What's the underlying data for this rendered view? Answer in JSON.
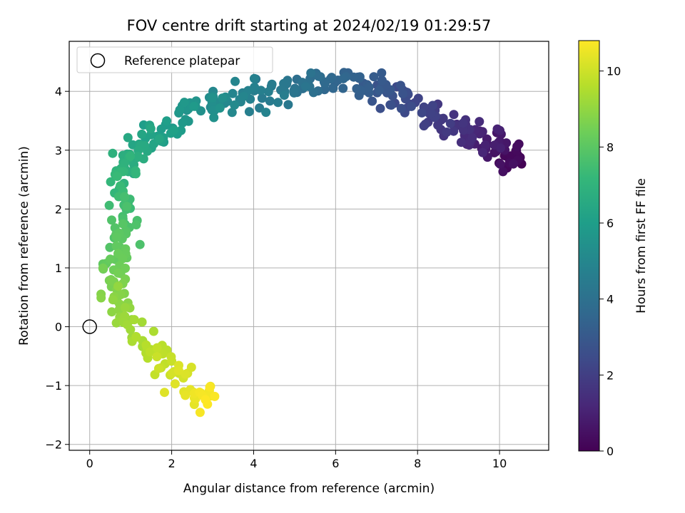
{
  "chart_data": {
    "type": "scatter",
    "title": "FOV centre drift starting at 2024/02/19 01:29:57",
    "xlabel": "Angular distance from reference (arcmin)",
    "ylabel": "Rotation from reference (arcmin)",
    "xlim": [
      -0.5,
      11.2
    ],
    "ylim": [
      -2.1,
      4.85
    ],
    "x_ticks": [
      0,
      2,
      4,
      6,
      8,
      10
    ],
    "y_ticks": [
      -2,
      -1,
      0,
      1,
      2,
      3,
      4
    ],
    "grid": true,
    "colormap": "viridis",
    "colorbar": {
      "label": "Hours from first FF file",
      "range": [
        0,
        10.8
      ],
      "ticks": [
        0,
        2,
        4,
        6,
        8,
        10
      ]
    },
    "legend": {
      "position": "top-left",
      "entries": [
        "Reference platepar"
      ]
    },
    "reference_point": {
      "x": 0,
      "y": 0,
      "label": "Reference platepar"
    },
    "path_anchors": [
      {
        "t": 0.0,
        "x": 10.5,
        "y": 2.8
      },
      {
        "t": 0.5,
        "x": 10.1,
        "y": 3.0
      },
      {
        "t": 1.0,
        "x": 9.7,
        "y": 3.15
      },
      {
        "t": 1.5,
        "x": 9.0,
        "y": 3.35
      },
      {
        "t": 2.0,
        "x": 8.3,
        "y": 3.55
      },
      {
        "t": 2.5,
        "x": 7.6,
        "y": 3.85
      },
      {
        "t": 3.0,
        "x": 7.0,
        "y": 4.1
      },
      {
        "t": 3.5,
        "x": 6.1,
        "y": 4.2
      },
      {
        "t": 4.0,
        "x": 5.3,
        "y": 4.15
      },
      {
        "t": 4.5,
        "x": 4.4,
        "y": 4.0
      },
      {
        "t": 5.0,
        "x": 3.4,
        "y": 3.85
      },
      {
        "t": 5.5,
        "x": 2.6,
        "y": 3.75
      },
      {
        "t": 6.0,
        "x": 1.9,
        "y": 3.4
      },
      {
        "t": 6.5,
        "x": 1.2,
        "y": 3.0
      },
      {
        "t": 7.0,
        "x": 0.8,
        "y": 2.7
      },
      {
        "t": 7.5,
        "x": 0.8,
        "y": 2.0
      },
      {
        "t": 8.0,
        "x": 0.75,
        "y": 1.4
      },
      {
        "t": 8.5,
        "x": 0.6,
        "y": 0.9
      },
      {
        "t": 9.0,
        "x": 0.75,
        "y": 0.3
      },
      {
        "t": 9.5,
        "x": 1.3,
        "y": -0.35
      },
      {
        "t": 10.0,
        "x": 2.0,
        "y": -0.75
      },
      {
        "t": 10.4,
        "x": 2.5,
        "y": -1.1
      },
      {
        "t": 10.8,
        "x": 2.95,
        "y": -1.4
      }
    ],
    "num_points": 440,
    "scatter_x": 0.2,
    "scatter_y": 0.13
  },
  "colors": {
    "grid": "#b0b0b0",
    "axis": "#000000",
    "viridis": [
      "#440154",
      "#482878",
      "#3e4a89",
      "#31688e",
      "#26828e",
      "#1f9e89",
      "#35b779",
      "#6ece58",
      "#b5de2b",
      "#fde725"
    ]
  }
}
